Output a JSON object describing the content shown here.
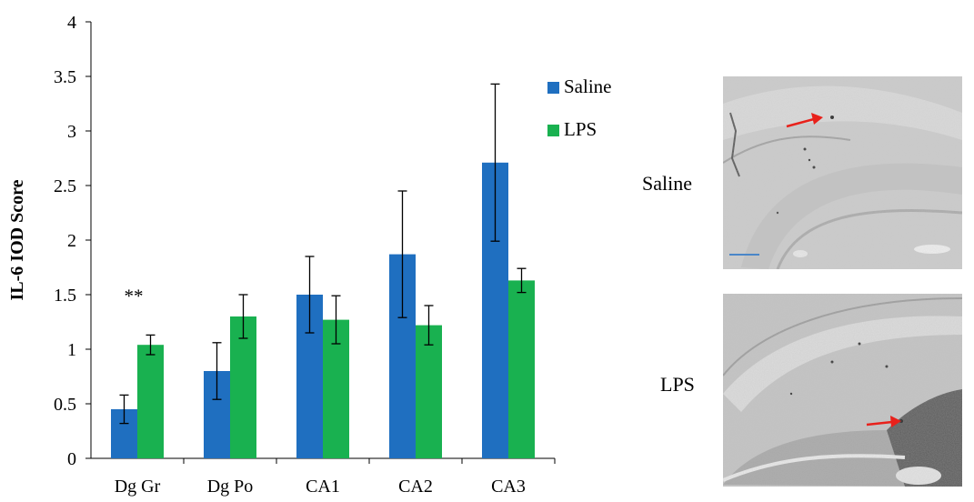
{
  "chart_data": {
    "type": "bar",
    "categories": [
      "Dg Gr",
      "Dg Po",
      "CA1",
      "CA2",
      "CA3"
    ],
    "series": [
      {
        "name": "Saline",
        "color": "#1f6fc0",
        "values": [
          0.45,
          0.8,
          1.5,
          1.87,
          2.71
        ],
        "error": [
          0.13,
          0.26,
          0.35,
          0.58,
          0.72
        ]
      },
      {
        "name": "LPS",
        "color": "#19b150",
        "values": [
          1.04,
          1.3,
          1.27,
          1.22,
          1.63
        ],
        "error": [
          0.09,
          0.2,
          0.22,
          0.18,
          0.11
        ]
      }
    ],
    "ylabel": "IL-6 IOD Score",
    "ylim": [
      0,
      4
    ],
    "yticks": [
      "0",
      "0.5",
      "1",
      "1.5",
      "2",
      "2.5",
      "3",
      "3.5",
      "4"
    ],
    "legend_position": "top-right",
    "grid": false,
    "annotations": [
      {
        "text": "**",
        "category": "Dg Gr"
      }
    ]
  },
  "panels": {
    "saline_label": "Saline",
    "lps_label": "LPS",
    "arrow_color": "#e8211b",
    "scale_bar_color": "#4a86c8"
  }
}
